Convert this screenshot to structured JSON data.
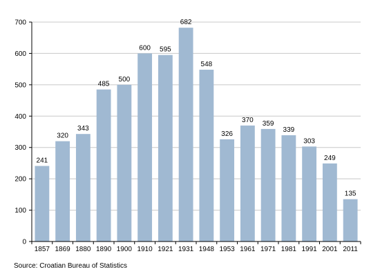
{
  "chart_data": {
    "type": "bar",
    "categories": [
      "1857",
      "1869",
      "1880",
      "1890",
      "1900",
      "1910",
      "1921",
      "1931",
      "1948",
      "1953",
      "1961",
      "1971",
      "1981",
      "1991",
      "2001",
      "2011"
    ],
    "values": [
      241,
      320,
      343,
      485,
      500,
      600,
      595,
      682,
      548,
      326,
      370,
      359,
      339,
      303,
      249,
      135
    ],
    "ylim": [
      0,
      700
    ],
    "yticks": [
      0,
      100,
      200,
      300,
      400,
      500,
      600,
      700
    ],
    "grid": true,
    "data_labels": true,
    "bar_color": "#a0b9d2",
    "grid_color": "#c8c8c8"
  },
  "source": "Source: Croatian Bureau of Statistics"
}
